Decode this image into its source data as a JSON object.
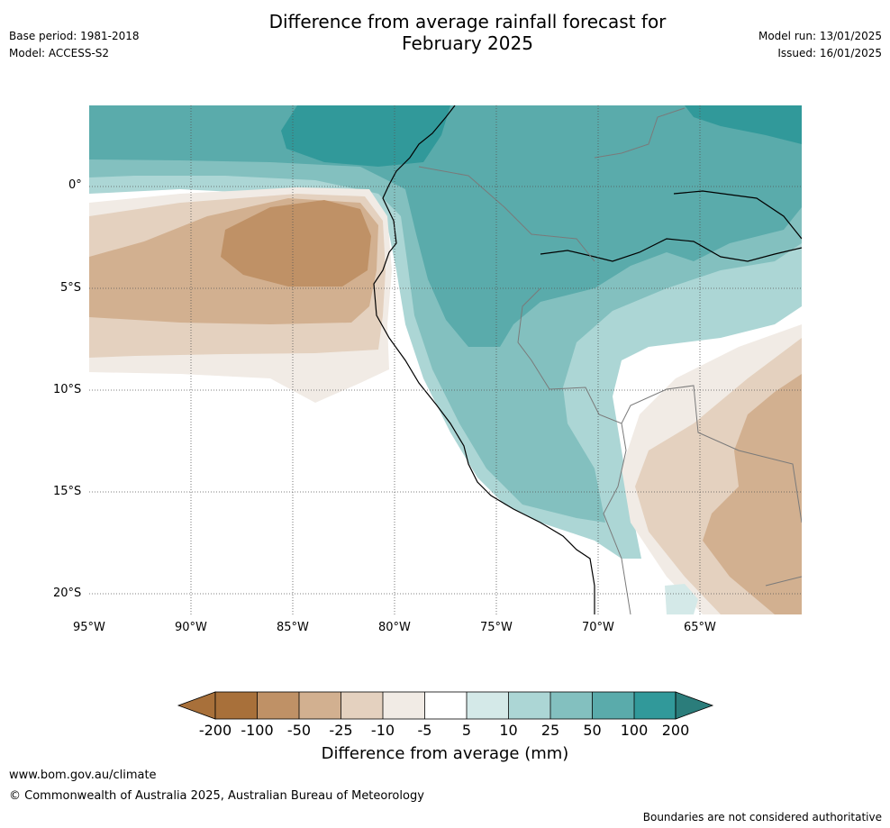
{
  "header": {
    "title_line1": "Difference from average rainfall forecast for",
    "title_line2": "February 2025",
    "base_period": "Base period: 1981-2018",
    "model": "Model: ACCESS-S2",
    "model_run": "Model run: 13/01/2025",
    "issued": "Issued: 16/01/2025"
  },
  "map": {
    "latitude_labels": [
      "0°",
      "5°S",
      "10°S",
      "15°S",
      "20°S"
    ],
    "longitude_labels": [
      "95°W",
      "90°W",
      "85°W",
      "80°W",
      "75°W",
      "70°W",
      "65°W"
    ],
    "extent": {
      "west": -95,
      "east": -60.2,
      "north": 3.9,
      "south": -21
    },
    "gridlines": "dotted"
  },
  "colorbar": {
    "title": "Difference from average (mm)",
    "tick_labels": [
      "-200",
      "-100",
      "-50",
      "-25",
      "-10",
      "-5",
      "5",
      "10",
      "25",
      "50",
      "100",
      "200"
    ],
    "colors": [
      "#a8703a",
      "#bf9166",
      "#d2b090",
      "#e4d1bf",
      "#f1ebe5",
      "#ffffff",
      "#d4e9e8",
      "#acd6d5",
      "#83c0bf",
      "#5aabab",
      "#31999a",
      "#2b7d7b"
    ]
  },
  "footer": {
    "url": "www.bom.gov.au/climate",
    "copyright": "© Commonwealth of Australia 2025, Australian Bureau of Meteorology",
    "note": "Boundaries are not considered authoritative"
  }
}
